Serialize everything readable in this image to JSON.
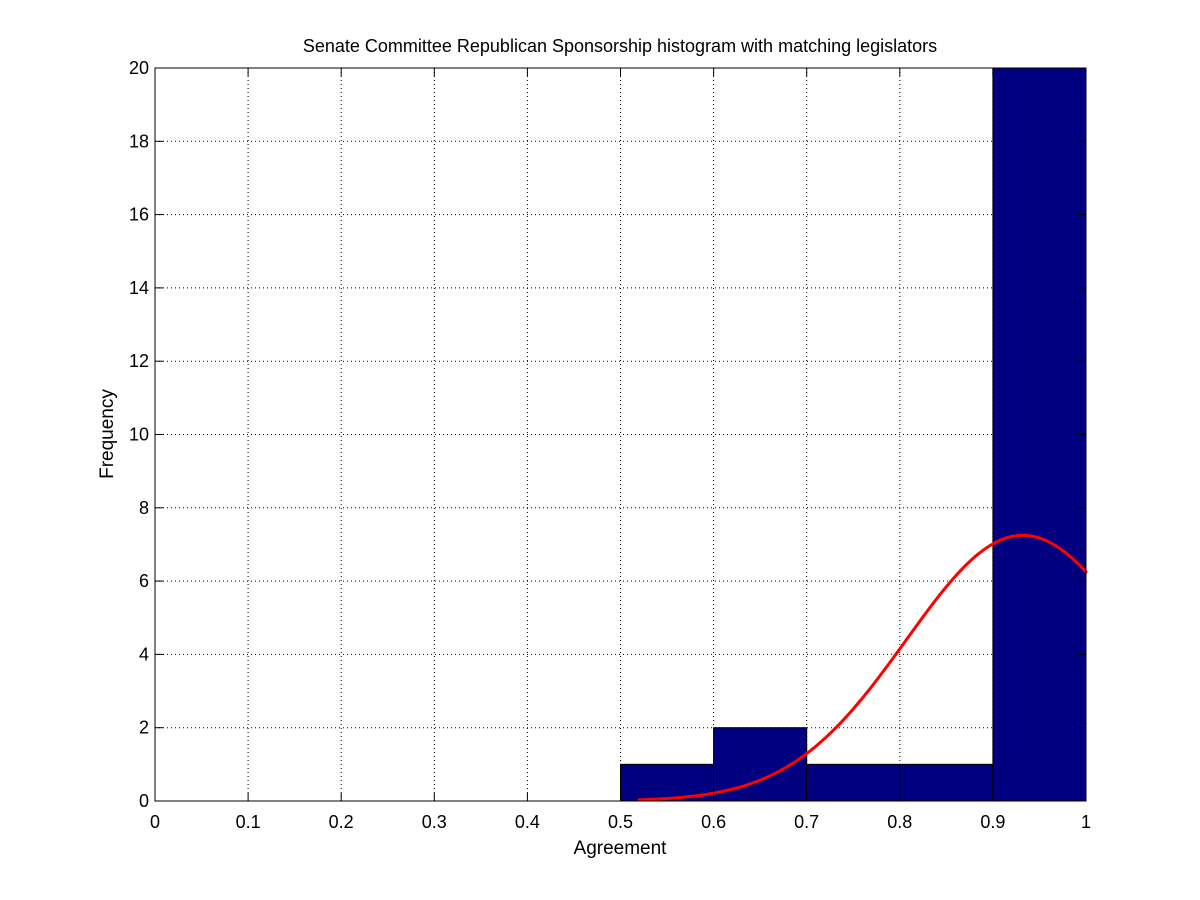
{
  "chart_data": {
    "type": "bar",
    "title": "Senate Committee Republican Sponsorship histogram with matching legislators",
    "xlabel": "Agreement",
    "ylabel": "Frequency",
    "xlim": [
      0,
      1
    ],
    "ylim": [
      0,
      20
    ],
    "grid": true,
    "xticks": [
      0,
      0.1,
      0.2,
      0.3,
      0.4,
      0.5,
      0.6,
      0.7,
      0.8,
      0.9,
      1
    ],
    "xtick_labels": [
      "0",
      "0.1",
      "0.2",
      "0.3",
      "0.4",
      "0.5",
      "0.6",
      "0.7",
      "0.8",
      "0.9",
      "1"
    ],
    "yticks": [
      0,
      2,
      4,
      6,
      8,
      10,
      12,
      14,
      16,
      18,
      20
    ],
    "ytick_labels": [
      "0",
      "2",
      "4",
      "6",
      "8",
      "10",
      "12",
      "14",
      "16",
      "18",
      "20"
    ],
    "bins": [
      {
        "start": 0.5,
        "end": 0.6,
        "value": 1
      },
      {
        "start": 0.6,
        "end": 0.7,
        "value": 2
      },
      {
        "start": 0.7,
        "end": 0.8,
        "value": 1
      },
      {
        "start": 0.8,
        "end": 0.9,
        "value": 1
      },
      {
        "start": 0.9,
        "end": 1.0,
        "value": 20
      }
    ],
    "fit_curve": {
      "type": "normal",
      "x_start": 0.52,
      "x_end": 1.0,
      "mean": 0.932,
      "peak": 7.25,
      "sigma": 0.125
    },
    "colors": {
      "bar_fill": "#000080",
      "bar_edge": "#000000",
      "curve": "#ff0000"
    }
  }
}
